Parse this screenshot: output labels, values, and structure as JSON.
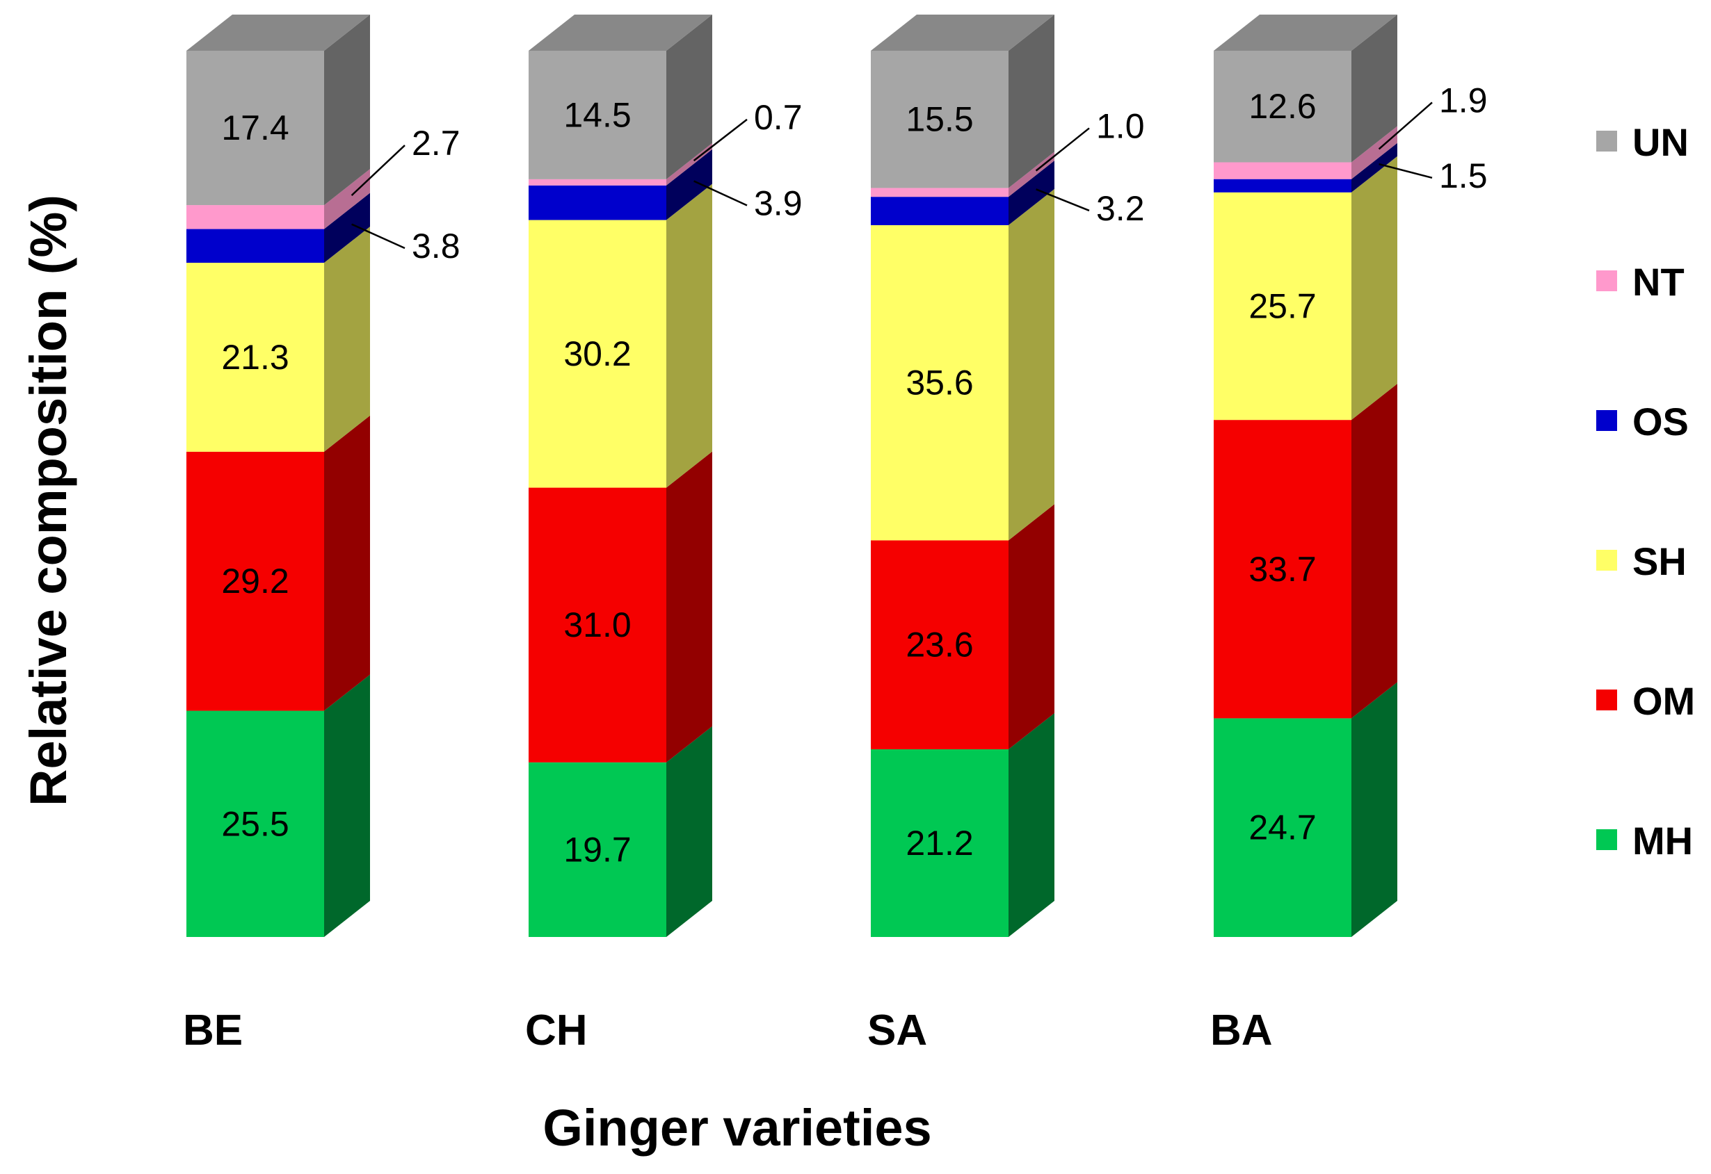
{
  "chart_data": {
    "type": "bar",
    "stacked": true,
    "style": "3d-stacked-column",
    "title": "",
    "xlabel": "Ginger varieties",
    "ylabel": "Relative composition (%)",
    "ylim": [
      0,
      100
    ],
    "grid": false,
    "legend_position": "right",
    "categories": [
      "BE",
      "CH",
      "SA",
      "BA"
    ],
    "series": [
      {
        "name": "MH",
        "values": [
          25.5,
          19.7,
          21.2,
          24.7
        ],
        "color": "#00c853"
      },
      {
        "name": "OM",
        "values": [
          29.2,
          31.0,
          23.6,
          33.7
        ],
        "color": "#f50000"
      },
      {
        "name": "SH",
        "values": [
          21.3,
          30.2,
          35.6,
          25.7
        ],
        "color": "#ffff66"
      },
      {
        "name": "OS",
        "values": [
          3.8,
          3.9,
          3.2,
          1.5
        ],
        "color": "#0000cc"
      },
      {
        "name": "NT",
        "values": [
          2.7,
          0.7,
          1.0,
          1.9
        ],
        "color": "#ff99cc"
      },
      {
        "name": "UN",
        "values": [
          17.4,
          14.5,
          15.5,
          12.6
        ],
        "color": "#a6a6a6"
      }
    ],
    "value_labels": {
      "BE": {
        "MH": "25.5",
        "OM": "29.2",
        "SH": "21.3",
        "OS": "3.8",
        "NT": "2.7",
        "UN": "17.4"
      },
      "CH": {
        "MH": "19.7",
        "OM": "31.0",
        "SH": "30.2",
        "OS": "3.9",
        "NT": "0.7",
        "UN": "14.5"
      },
      "SA": {
        "MH": "21.2",
        "OM": "23.6",
        "SH": "35.6",
        "OS": "3.2",
        "NT": "1.0",
        "UN": "15.5"
      },
      "BA": {
        "MH": "24.7",
        "OM": "33.7",
        "SH": "25.7",
        "OS": "1.5",
        "NT": "1.9",
        "UN": "12.6"
      }
    },
    "legend_order": [
      "UN",
      "NT",
      "OS",
      "SH",
      "OM",
      "MH"
    ]
  }
}
